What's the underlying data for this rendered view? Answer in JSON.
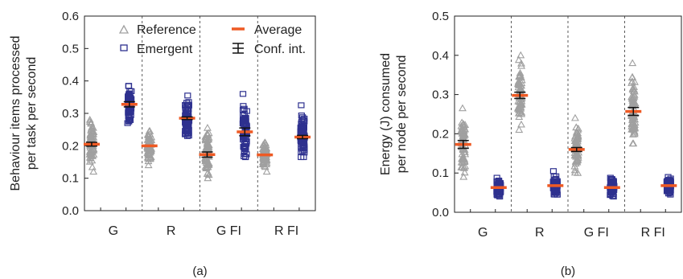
{
  "chart_data": [
    {
      "type": "scatter",
      "panel_label": "(a)",
      "ylabel_lines": [
        "Behaviour items processed",
        "per task per second"
      ],
      "ylim": [
        0,
        0.6
      ],
      "yticks": [
        "0.0",
        "0.1",
        "0.2",
        "0.3",
        "0.4",
        "0.5",
        "0.6"
      ],
      "categories": [
        "G",
        "R",
        "G FI",
        "R FI"
      ],
      "legend": {
        "placement": "top",
        "entries": [
          {
            "key": "reference",
            "label": "Reference"
          },
          {
            "key": "emergent",
            "label": "Emergent"
          },
          {
            "key": "average",
            "label": "Average"
          },
          {
            "key": "ci",
            "label": "Conf. int."
          }
        ]
      },
      "series": [
        {
          "key": "reference",
          "color": "#a0a0a0",
          "groups": [
            {
              "category": "G",
              "min": 0.12,
              "max": 0.28,
              "avg": 0.205,
              "ci": 0.006
            },
            {
              "category": "R",
              "min": 0.14,
              "max": 0.245,
              "avg": 0.2,
              "ci": 0
            },
            {
              "category": "G FI",
              "min": 0.1,
              "max": 0.255,
              "avg": 0.173,
              "ci": 0.008
            },
            {
              "category": "R FI",
              "min": 0.12,
              "max": 0.21,
              "avg": 0.172,
              "ci": 0
            }
          ]
        },
        {
          "key": "emergent",
          "color": "#2e318f",
          "groups": [
            {
              "category": "G",
              "min": 0.27,
              "max": 0.385,
              "avg": 0.328,
              "ci": 0.008
            },
            {
              "category": "R",
              "min": 0.23,
              "max": 0.355,
              "avg": 0.285,
              "ci": 0.004
            },
            {
              "category": "G FI",
              "min": 0.165,
              "max": 0.36,
              "avg": 0.243,
              "ci": 0.012
            },
            {
              "category": "R FI",
              "min": 0.165,
              "max": 0.325,
              "avg": 0.227,
              "ci": 0.005
            }
          ]
        }
      ]
    },
    {
      "type": "scatter",
      "panel_label": "(b)",
      "ylabel_lines": [
        "Energy (J) consumed",
        "per node per second"
      ],
      "ylim": [
        0,
        0.5
      ],
      "yticks": [
        "0.0",
        "0.1",
        "0.2",
        "0.3",
        "0.4",
        "0.5"
      ],
      "categories": [
        "G",
        "R",
        "G FI",
        "R FI"
      ],
      "series": [
        {
          "key": "reference",
          "color": "#a0a0a0",
          "groups": [
            {
              "category": "G",
              "min": 0.09,
              "max": 0.265,
              "avg": 0.173,
              "ci": 0.01
            },
            {
              "category": "R",
              "min": 0.21,
              "max": 0.4,
              "avg": 0.298,
              "ci": 0.008
            },
            {
              "category": "G FI",
              "min": 0.1,
              "max": 0.24,
              "avg": 0.16,
              "ci": 0.005
            },
            {
              "category": "R FI",
              "min": 0.175,
              "max": 0.38,
              "avg": 0.257,
              "ci": 0.01
            }
          ]
        },
        {
          "key": "emergent",
          "color": "#2e318f",
          "groups": [
            {
              "category": "G",
              "min": 0.04,
              "max": 0.088,
              "avg": 0.063,
              "ci": 0
            },
            {
              "category": "R",
              "min": 0.045,
              "max": 0.105,
              "avg": 0.068,
              "ci": 0
            },
            {
              "category": "G FI",
              "min": 0.04,
              "max": 0.088,
              "avg": 0.063,
              "ci": 0
            },
            {
              "category": "R FI",
              "min": 0.045,
              "max": 0.09,
              "avg": 0.068,
              "ci": 0
            }
          ]
        }
      ]
    }
  ],
  "style": {
    "reference_color": "#a0a0a0",
    "emergent_color": "#2e318f",
    "average_color": "#ee5a24",
    "ci_color": "#111111"
  }
}
